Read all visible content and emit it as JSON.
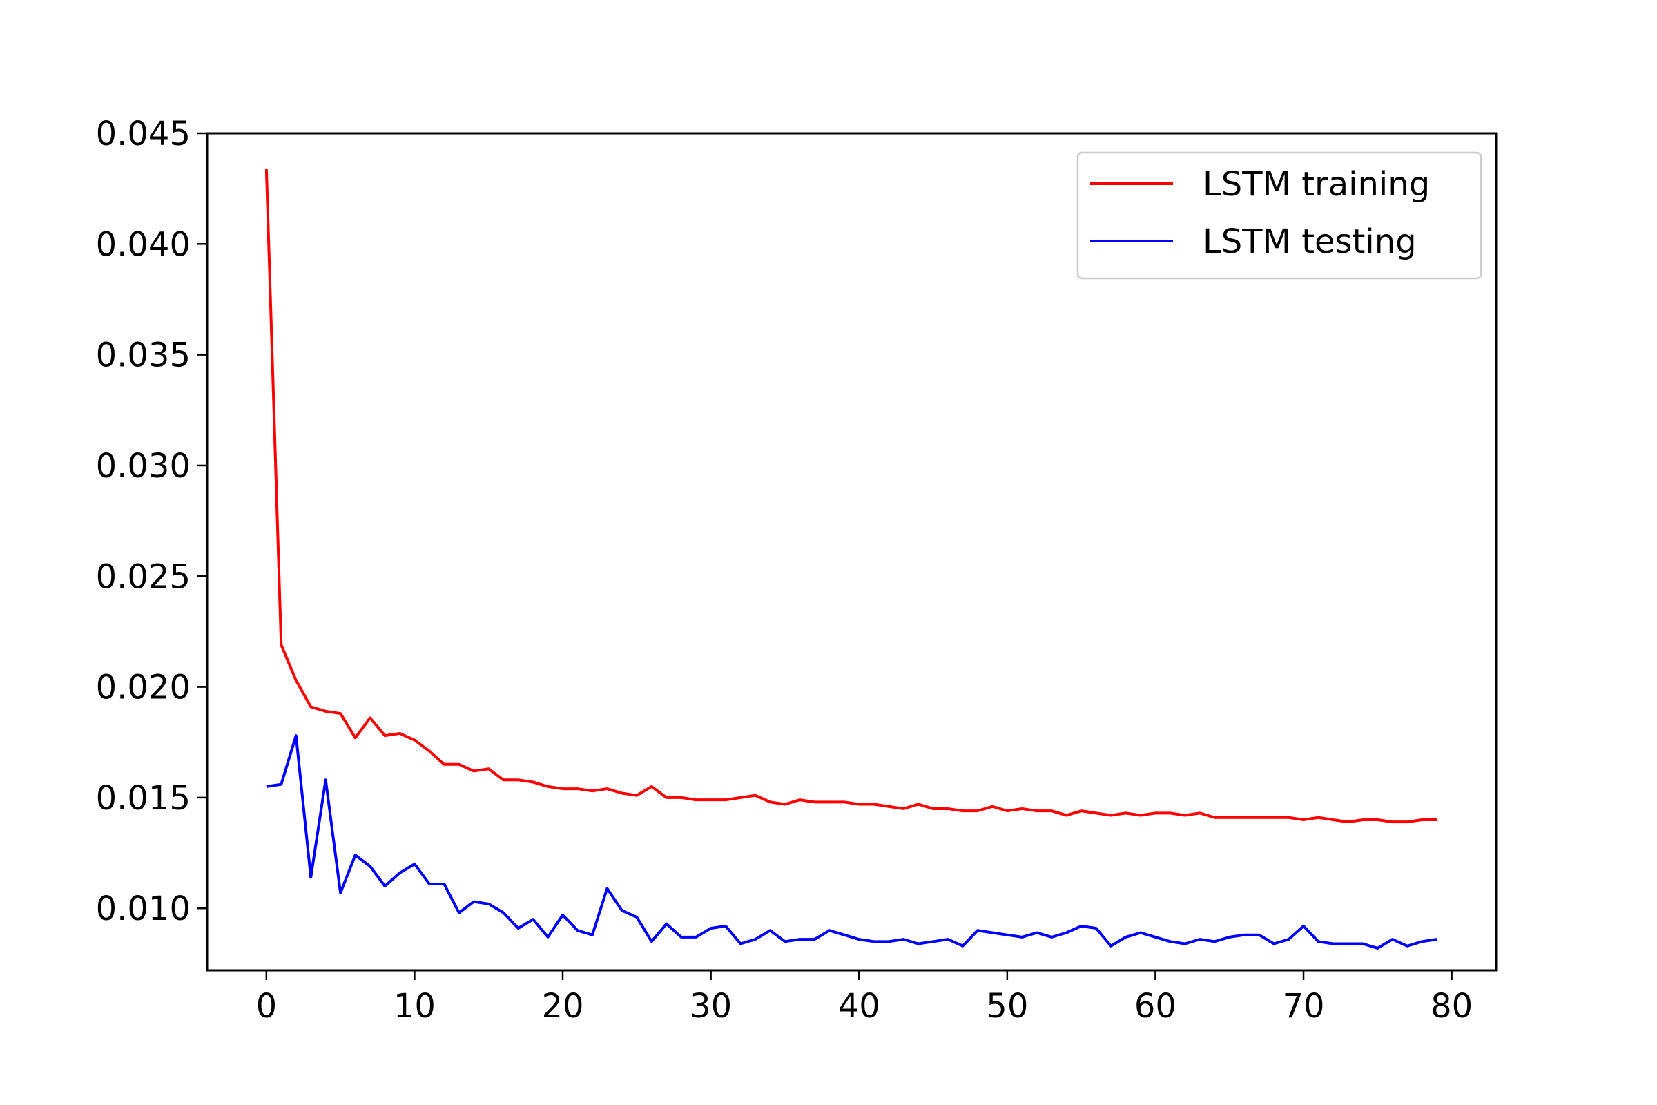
{
  "chart_data": {
    "type": "line",
    "title": "",
    "xlabel": "",
    "ylabel": "",
    "xlim": [
      -4,
      83
    ],
    "ylim": [
      0.0072,
      0.045
    ],
    "grid": false,
    "legend_position": "top-right",
    "x_ticks": [
      0,
      10,
      20,
      30,
      40,
      50,
      60,
      70,
      80
    ],
    "x_tick_labels": [
      "0",
      "10",
      "20",
      "30",
      "40",
      "50",
      "60",
      "70",
      "80"
    ],
    "y_ticks": [
      0.01,
      0.015,
      0.02,
      0.025,
      0.03,
      0.035,
      0.04,
      0.045
    ],
    "y_tick_labels": [
      "0.010",
      "0.015",
      "0.020",
      "0.025",
      "0.030",
      "0.035",
      "0.040",
      "0.045"
    ],
    "series": [
      {
        "name": "LSTM training",
        "color": "#ff0000",
        "values": [
          0.0434,
          0.0219,
          0.0203,
          0.0191,
          0.0189,
          0.0188,
          0.0177,
          0.0186,
          0.0178,
          0.0179,
          0.0176,
          0.0171,
          0.0165,
          0.0165,
          0.0162,
          0.0163,
          0.0158,
          0.0158,
          0.0157,
          0.0155,
          0.0154,
          0.0154,
          0.0153,
          0.0154,
          0.0152,
          0.0151,
          0.0155,
          0.015,
          0.015,
          0.0149,
          0.0149,
          0.0149,
          0.015,
          0.0151,
          0.0148,
          0.0147,
          0.0149,
          0.0148,
          0.0148,
          0.0148,
          0.0147,
          0.0147,
          0.0146,
          0.0145,
          0.0147,
          0.0145,
          0.0145,
          0.0144,
          0.0144,
          0.0146,
          0.0144,
          0.0145,
          0.0144,
          0.0144,
          0.0142,
          0.0144,
          0.0143,
          0.0142,
          0.0143,
          0.0142,
          0.0143,
          0.0143,
          0.0142,
          0.0143,
          0.0141,
          0.0141,
          0.0141,
          0.0141,
          0.0141,
          0.0141,
          0.014,
          0.0141,
          0.014,
          0.0139,
          0.014,
          0.014,
          0.0139,
          0.0139,
          0.014,
          0.014
        ]
      },
      {
        "name": "LSTM testing",
        "color": "#0000ff",
        "values": [
          0.0155,
          0.0156,
          0.0178,
          0.0114,
          0.0158,
          0.0107,
          0.0124,
          0.0119,
          0.011,
          0.0116,
          0.012,
          0.0111,
          0.0111,
          0.0098,
          0.0103,
          0.0102,
          0.0098,
          0.0091,
          0.0095,
          0.0087,
          0.0097,
          0.009,
          0.0088,
          0.0109,
          0.0099,
          0.0096,
          0.0085,
          0.0093,
          0.0087,
          0.0087,
          0.0091,
          0.0092,
          0.0084,
          0.0086,
          0.009,
          0.0085,
          0.0086,
          0.0086,
          0.009,
          0.0088,
          0.0086,
          0.0085,
          0.0085,
          0.0086,
          0.0084,
          0.0085,
          0.0086,
          0.0083,
          0.009,
          0.0089,
          0.0088,
          0.0087,
          0.0089,
          0.0087,
          0.0089,
          0.0092,
          0.0091,
          0.0083,
          0.0087,
          0.0089,
          0.0087,
          0.0085,
          0.0084,
          0.0086,
          0.0085,
          0.0087,
          0.0088,
          0.0088,
          0.0084,
          0.0086,
          0.0092,
          0.0085,
          0.0084,
          0.0084,
          0.0084,
          0.0082,
          0.0086,
          0.0083,
          0.0085,
          0.0086
        ]
      }
    ]
  }
}
